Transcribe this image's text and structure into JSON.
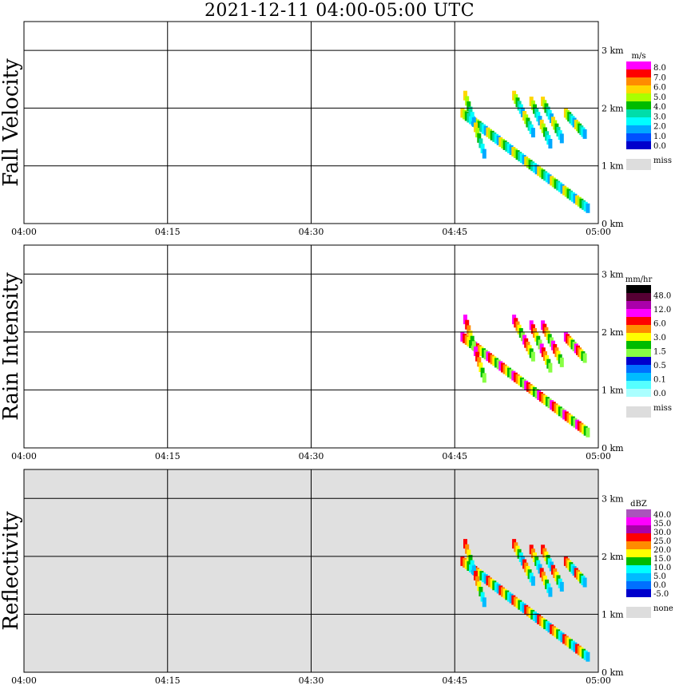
{
  "title": "2021-12-11   04:00-05:00 UTC",
  "chart_data": [
    {
      "type": "heatmap",
      "ylabel": "Fall Velocity",
      "x_ticks": [
        "04:00",
        "04:15",
        "04:30",
        "04:45",
        "05:00"
      ],
      "y_ticks": [
        "0 km",
        "1 km",
        "2 km",
        "3 km"
      ],
      "ylim": [
        0,
        3.5
      ],
      "background": "#ffffff",
      "colorbar": {
        "unit": "m/s",
        "labels": [
          "8.0",
          "7.0",
          "6.0",
          "5.0",
          "4.0",
          "3.0",
          "2.0",
          "1.0",
          "0.0"
        ],
        "colors": [
          "#ff00ff",
          "#ff0000",
          "#ff8c00",
          "#ffd700",
          "#aaff00",
          "#00bb00",
          "#00ddaa",
          "#00ffff",
          "#00a8ff",
          "#0050ff",
          "#0000cc"
        ],
        "miss_label": "miss",
        "miss_color": "#dddddd"
      }
    },
    {
      "type": "heatmap",
      "ylabel": "Rain Intensity",
      "x_ticks": [
        "04:00",
        "04:15",
        "04:30",
        "04:45",
        "05:00"
      ],
      "y_ticks": [
        "0 km",
        "1 km",
        "2 km",
        "3 km"
      ],
      "ylim": [
        0,
        3.5
      ],
      "background": "#ffffff",
      "colorbar": {
        "unit": "mm/hr",
        "labels": [
          "48.0",
          "12.0",
          "6.0",
          "3.0",
          "1.5",
          "0.5",
          "0.1",
          "0.0"
        ],
        "colors": [
          "#000000",
          "#550033",
          "#aa00aa",
          "#ff00ff",
          "#ff0000",
          "#ff8c00",
          "#ffff00",
          "#00bb00",
          "#88ff44",
          "#0000cc",
          "#0070ff",
          "#00bbff",
          "#55ffff",
          "#aaffff"
        ],
        "miss_label": "miss",
        "miss_color": "#dddddd"
      }
    },
    {
      "type": "heatmap",
      "ylabel": "Reflectivity",
      "x_ticks": [
        "04:00",
        "04:15",
        "04:30",
        "04:45",
        "05:00"
      ],
      "y_ticks": [
        "0 km",
        "1 km",
        "2 km",
        "3 km"
      ],
      "ylim": [
        0,
        3.5
      ],
      "background": "#e0e0e0",
      "colorbar": {
        "unit": "dBZ",
        "labels": [
          "40.0",
          "35.0",
          "30.0",
          "25.0",
          "20.0",
          "15.0",
          "10.0",
          "5.0",
          "0.0",
          "-5.0"
        ],
        "colors": [
          "#aa55bb",
          "#ff00ff",
          "#aa00aa",
          "#ff0000",
          "#ff8c00",
          "#ffff00",
          "#00bb00",
          "#00ffff",
          "#00bbff",
          "#0070ff",
          "#0000cc"
        ],
        "miss_label": "none",
        "miss_color": "#dddddd"
      }
    }
  ]
}
